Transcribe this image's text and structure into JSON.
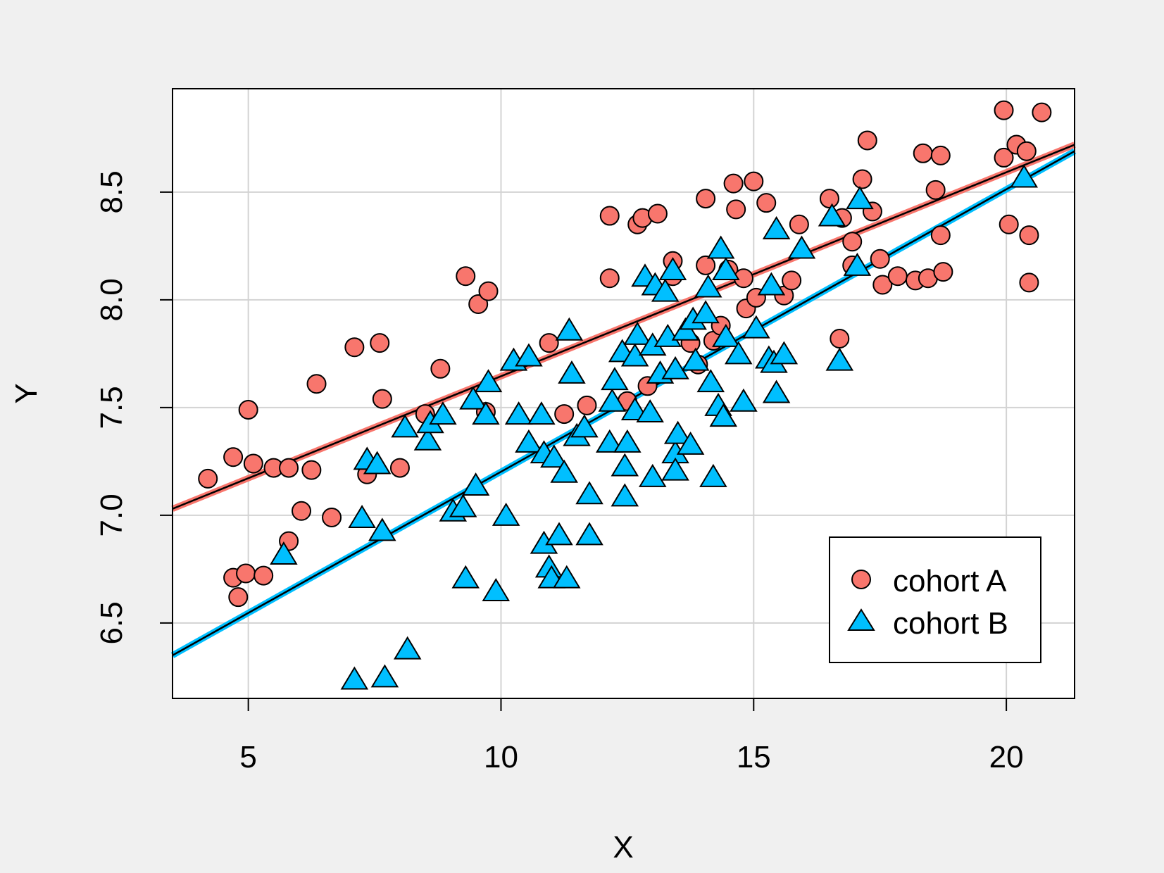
{
  "chart_data": {
    "type": "scatter",
    "title": "",
    "xlabel": "X",
    "ylabel": "Y",
    "xlim": [
      3.5,
      21.35
    ],
    "ylim": [
      6.15,
      8.98
    ],
    "x_ticks": [
      5,
      10,
      15,
      20
    ],
    "x_tick_labels": [
      "5",
      "10",
      "15",
      "20"
    ],
    "y_ticks": [
      6.5,
      7.0,
      7.5,
      8.0,
      8.5
    ],
    "y_tick_labels": [
      "6.5",
      "7.0",
      "7.5",
      "8.0",
      "8.5"
    ],
    "grid": true,
    "legend_position": "bottom-right",
    "series": [
      {
        "name": "cohort A",
        "marker": "circle",
        "color": "#f8766d",
        "fit_line": {
          "x": [
            3.5,
            21.35
          ],
          "y": [
            7.03,
            8.72
          ],
          "color": "#f8766d"
        },
        "points": [
          {
            "x": 4.2,
            "y": 7.17
          },
          {
            "x": 4.7,
            "y": 7.27
          },
          {
            "x": 4.7,
            "y": 6.71
          },
          {
            "x": 4.8,
            "y": 6.62
          },
          {
            "x": 4.95,
            "y": 6.73
          },
          {
            "x": 5.0,
            "y": 7.49
          },
          {
            "x": 5.1,
            "y": 7.24
          },
          {
            "x": 5.3,
            "y": 6.72
          },
          {
            "x": 5.5,
            "y": 7.22
          },
          {
            "x": 5.8,
            "y": 7.22
          },
          {
            "x": 5.8,
            "y": 6.88
          },
          {
            "x": 6.05,
            "y": 7.02
          },
          {
            "x": 6.25,
            "y": 7.21
          },
          {
            "x": 6.35,
            "y": 7.61
          },
          {
            "x": 6.65,
            "y": 6.99
          },
          {
            "x": 7.1,
            "y": 7.78
          },
          {
            "x": 7.35,
            "y": 7.19
          },
          {
            "x": 7.6,
            "y": 7.8
          },
          {
            "x": 7.65,
            "y": 7.54
          },
          {
            "x": 8.0,
            "y": 7.22
          },
          {
            "x": 8.5,
            "y": 7.47
          },
          {
            "x": 8.8,
            "y": 7.68
          },
          {
            "x": 9.3,
            "y": 8.11
          },
          {
            "x": 9.55,
            "y": 7.98
          },
          {
            "x": 9.75,
            "y": 8.04
          },
          {
            "x": 9.7,
            "y": 7.48
          },
          {
            "x": 10.95,
            "y": 7.8
          },
          {
            "x": 11.25,
            "y": 7.47
          },
          {
            "x": 11.7,
            "y": 7.51
          },
          {
            "x": 12.15,
            "y": 8.39
          },
          {
            "x": 12.15,
            "y": 8.1
          },
          {
            "x": 12.5,
            "y": 7.53
          },
          {
            "x": 12.7,
            "y": 8.35
          },
          {
            "x": 12.8,
            "y": 8.38
          },
          {
            "x": 12.9,
            "y": 7.6
          },
          {
            "x": 13.1,
            "y": 8.4
          },
          {
            "x": 13.4,
            "y": 8.18
          },
          {
            "x": 13.4,
            "y": 8.11
          },
          {
            "x": 13.75,
            "y": 7.8
          },
          {
            "x": 13.9,
            "y": 7.7
          },
          {
            "x": 14.05,
            "y": 8.47
          },
          {
            "x": 14.05,
            "y": 8.16
          },
          {
            "x": 14.2,
            "y": 7.81
          },
          {
            "x": 14.35,
            "y": 7.88
          },
          {
            "x": 14.5,
            "y": 8.14
          },
          {
            "x": 14.6,
            "y": 8.54
          },
          {
            "x": 14.65,
            "y": 8.42
          },
          {
            "x": 14.8,
            "y": 8.1
          },
          {
            "x": 14.85,
            "y": 7.96
          },
          {
            "x": 15.0,
            "y": 8.55
          },
          {
            "x": 15.05,
            "y": 8.01
          },
          {
            "x": 15.25,
            "y": 8.45
          },
          {
            "x": 15.6,
            "y": 8.02
          },
          {
            "x": 15.75,
            "y": 8.09
          },
          {
            "x": 15.9,
            "y": 8.35
          },
          {
            "x": 16.5,
            "y": 8.47
          },
          {
            "x": 16.7,
            "y": 7.82
          },
          {
            "x": 16.75,
            "y": 8.38
          },
          {
            "x": 16.95,
            "y": 8.27
          },
          {
            "x": 16.95,
            "y": 8.16
          },
          {
            "x": 17.15,
            "y": 8.56
          },
          {
            "x": 17.25,
            "y": 8.74
          },
          {
            "x": 17.35,
            "y": 8.41
          },
          {
            "x": 17.5,
            "y": 8.19
          },
          {
            "x": 17.55,
            "y": 8.07
          },
          {
            "x": 17.85,
            "y": 8.11
          },
          {
            "x": 18.2,
            "y": 8.09
          },
          {
            "x": 18.35,
            "y": 8.68
          },
          {
            "x": 18.45,
            "y": 8.1
          },
          {
            "x": 18.6,
            "y": 8.51
          },
          {
            "x": 18.7,
            "y": 8.67
          },
          {
            "x": 18.7,
            "y": 8.3
          },
          {
            "x": 18.75,
            "y": 8.13
          },
          {
            "x": 19.95,
            "y": 8.88
          },
          {
            "x": 19.95,
            "y": 8.66
          },
          {
            "x": 20.05,
            "y": 8.35
          },
          {
            "x": 20.2,
            "y": 8.72
          },
          {
            "x": 20.4,
            "y": 8.69
          },
          {
            "x": 20.45,
            "y": 8.3
          },
          {
            "x": 20.45,
            "y": 8.08
          },
          {
            "x": 20.7,
            "y": 8.87
          }
        ]
      },
      {
        "name": "cohort B",
        "marker": "triangle",
        "color": "#00bfff",
        "fit_line": {
          "x": [
            3.5,
            21.35
          ],
          "y": [
            6.35,
            8.69
          ],
          "color": "#00bfff"
        },
        "points": [
          {
            "x": 5.7,
            "y": 6.82
          },
          {
            "x": 7.1,
            "y": 6.24
          },
          {
            "x": 7.25,
            "y": 6.99
          },
          {
            "x": 7.35,
            "y": 7.26
          },
          {
            "x": 7.55,
            "y": 7.24
          },
          {
            "x": 7.65,
            "y": 6.93
          },
          {
            "x": 7.7,
            "y": 6.25
          },
          {
            "x": 8.1,
            "y": 7.41
          },
          {
            "x": 8.15,
            "y": 6.38
          },
          {
            "x": 8.55,
            "y": 7.35
          },
          {
            "x": 8.6,
            "y": 7.43
          },
          {
            "x": 8.85,
            "y": 7.47
          },
          {
            "x": 9.05,
            "y": 7.02
          },
          {
            "x": 9.25,
            "y": 7.04
          },
          {
            "x": 9.3,
            "y": 6.71
          },
          {
            "x": 9.45,
            "y": 7.54
          },
          {
            "x": 9.5,
            "y": 7.14
          },
          {
            "x": 9.7,
            "y": 7.47
          },
          {
            "x": 9.75,
            "y": 7.62
          },
          {
            "x": 9.9,
            "y": 6.65
          },
          {
            "x": 10.1,
            "y": 7.0
          },
          {
            "x": 10.25,
            "y": 7.72
          },
          {
            "x": 10.35,
            "y": 7.47
          },
          {
            "x": 10.55,
            "y": 7.74
          },
          {
            "x": 10.55,
            "y": 7.34
          },
          {
            "x": 10.85,
            "y": 7.29
          },
          {
            "x": 10.8,
            "y": 7.47
          },
          {
            "x": 10.85,
            "y": 6.87
          },
          {
            "x": 10.95,
            "y": 6.76
          },
          {
            "x": 11.0,
            "y": 6.71
          },
          {
            "x": 11.05,
            "y": 7.27
          },
          {
            "x": 11.15,
            "y": 6.91
          },
          {
            "x": 11.25,
            "y": 7.2
          },
          {
            "x": 11.3,
            "y": 6.71
          },
          {
            "x": 11.35,
            "y": 7.86
          },
          {
            "x": 11.4,
            "y": 7.66
          },
          {
            "x": 11.5,
            "y": 7.37
          },
          {
            "x": 11.75,
            "y": 7.1
          },
          {
            "x": 11.75,
            "y": 6.91
          },
          {
            "x": 11.65,
            "y": 7.41
          },
          {
            "x": 12.15,
            "y": 7.34
          },
          {
            "x": 12.2,
            "y": 7.53
          },
          {
            "x": 12.25,
            "y": 7.63
          },
          {
            "x": 12.4,
            "y": 7.76
          },
          {
            "x": 12.45,
            "y": 7.23
          },
          {
            "x": 12.45,
            "y": 7.09
          },
          {
            "x": 12.5,
            "y": 7.34
          },
          {
            "x": 12.65,
            "y": 7.49
          },
          {
            "x": 12.65,
            "y": 7.74
          },
          {
            "x": 12.7,
            "y": 7.84
          },
          {
            "x": 12.85,
            "y": 8.11
          },
          {
            "x": 12.95,
            "y": 7.48
          },
          {
            "x": 13.0,
            "y": 7.18
          },
          {
            "x": 13.05,
            "y": 8.07
          },
          {
            "x": 13.0,
            "y": 7.79
          },
          {
            "x": 13.15,
            "y": 7.66
          },
          {
            "x": 13.25,
            "y": 8.04
          },
          {
            "x": 13.3,
            "y": 7.83
          },
          {
            "x": 13.4,
            "y": 8.14
          },
          {
            "x": 13.45,
            "y": 7.68
          },
          {
            "x": 13.45,
            "y": 7.29
          },
          {
            "x": 13.45,
            "y": 7.21
          },
          {
            "x": 13.5,
            "y": 7.38
          },
          {
            "x": 13.65,
            "y": 7.86
          },
          {
            "x": 13.75,
            "y": 7.33
          },
          {
            "x": 13.8,
            "y": 7.91
          },
          {
            "x": 13.85,
            "y": 7.72
          },
          {
            "x": 14.05,
            "y": 7.94
          },
          {
            "x": 14.1,
            "y": 8.06
          },
          {
            "x": 14.15,
            "y": 7.62
          },
          {
            "x": 14.2,
            "y": 7.18
          },
          {
            "x": 14.3,
            "y": 7.51
          },
          {
            "x": 14.35,
            "y": 8.24
          },
          {
            "x": 14.4,
            "y": 7.46
          },
          {
            "x": 14.45,
            "y": 8.14
          },
          {
            "x": 14.45,
            "y": 7.83
          },
          {
            "x": 14.7,
            "y": 7.75
          },
          {
            "x": 14.8,
            "y": 7.53
          },
          {
            "x": 15.05,
            "y": 7.87
          },
          {
            "x": 15.3,
            "y": 7.73
          },
          {
            "x": 15.35,
            "y": 8.07
          },
          {
            "x": 15.4,
            "y": 7.71
          },
          {
            "x": 15.45,
            "y": 8.33
          },
          {
            "x": 15.45,
            "y": 7.57
          },
          {
            "x": 15.6,
            "y": 7.75
          },
          {
            "x": 15.95,
            "y": 8.24
          },
          {
            "x": 16.55,
            "y": 8.39
          },
          {
            "x": 16.7,
            "y": 7.72
          },
          {
            "x": 17.05,
            "y": 8.16
          },
          {
            "x": 17.1,
            "y": 8.47
          },
          {
            "x": 20.35,
            "y": 8.57
          }
        ]
      }
    ]
  }
}
